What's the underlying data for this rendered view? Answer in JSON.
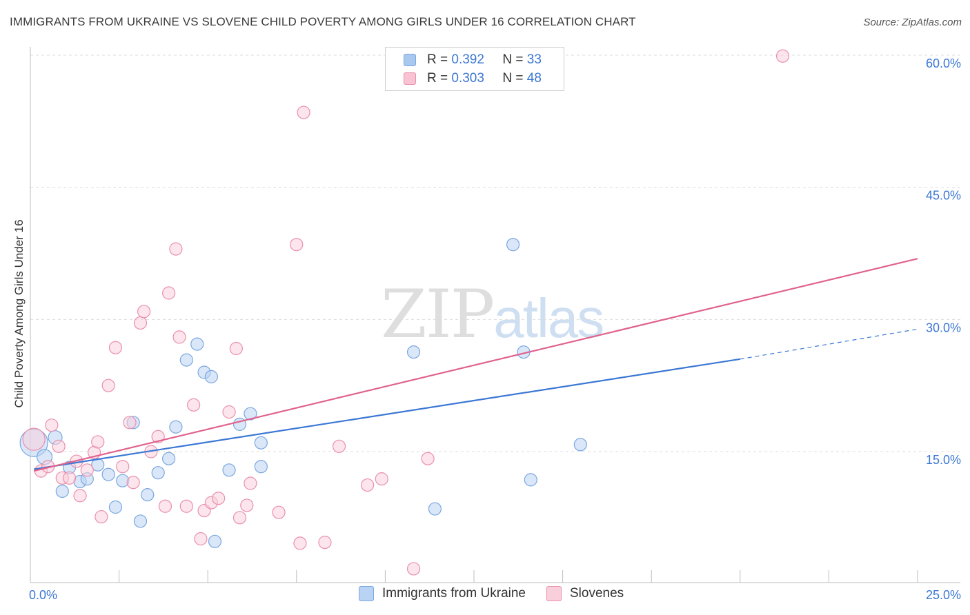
{
  "title": "IMMIGRANTS FROM UKRAINE VS SLOVENE CHILD POVERTY AMONG GIRLS UNDER 16 CORRELATION CHART",
  "source": "Source: ZipAtlas.com",
  "watermark": {
    "zip": "ZIP",
    "atlas": "atlas"
  },
  "legend": {
    "rows": [
      {
        "r_label": "R = ",
        "r_value": "0.392",
        "n_label": "N = ",
        "n_value": "33",
        "color": "#a9c8f0",
        "border": "#7aa6df"
      },
      {
        "r_label": "R = ",
        "r_value": "0.303",
        "n_label": "N = ",
        "n_value": "48",
        "color": "#f8c3d3",
        "border": "#ea8fac"
      }
    ]
  },
  "bottom_legend": [
    {
      "label": "Immigrants from Ukraine",
      "color": "#b9d3f4",
      "border": "#7aa6df"
    },
    {
      "label": "Slovenes",
      "color": "#f9cfdc",
      "border": "#ea8fac"
    }
  ],
  "chart_data": {
    "type": "scatter",
    "title": "IMMIGRANTS FROM UKRAINE VS SLOVENE CHILD POVERTY AMONG GIRLS UNDER 16 CORRELATION CHART",
    "xlabel": "",
    "ylabel": "Child Poverty Among Girls Under 16",
    "xlim": [
      0,
      25
    ],
    "ylim": [
      0,
      60
    ],
    "x_tick_labels": {
      "min": "0.0%",
      "max": "25.0%"
    },
    "y_ticks": [
      15,
      30,
      45,
      60
    ],
    "y_tick_labels": [
      "15.0%",
      "30.0%",
      "45.0%",
      "60.0%"
    ],
    "grid": "horizontal dashed",
    "series": [
      {
        "name": "Immigrants from Ukraine",
        "color": "#3b77d4",
        "fill": "#b9d3f4",
        "stroke": "#7aa6df",
        "points": [
          [
            0.1,
            16.0,
            20
          ],
          [
            0.4,
            14.4,
            11
          ],
          [
            0.7,
            16.6,
            10
          ],
          [
            0.9,
            10.5,
            9
          ],
          [
            1.1,
            13.2,
            9
          ],
          [
            1.4,
            11.6,
            9
          ],
          [
            1.6,
            11.9,
            9
          ],
          [
            1.9,
            13.5,
            9
          ],
          [
            2.2,
            12.4,
            9
          ],
          [
            2.4,
            8.7,
            9
          ],
          [
            2.6,
            11.7,
            9
          ],
          [
            2.9,
            18.3,
            9
          ],
          [
            3.1,
            7.1,
            9
          ],
          [
            3.3,
            10.1,
            9
          ],
          [
            3.6,
            12.6,
            9
          ],
          [
            3.9,
            14.2,
            9
          ],
          [
            4.1,
            17.8,
            9
          ],
          [
            4.4,
            25.4,
            9
          ],
          [
            4.7,
            27.2,
            9
          ],
          [
            4.9,
            24.0,
            9
          ],
          [
            5.1,
            23.5,
            9
          ],
          [
            5.2,
            4.8,
            9
          ],
          [
            5.6,
            12.9,
            9
          ],
          [
            5.9,
            18.1,
            9
          ],
          [
            6.2,
            19.3,
            9
          ],
          [
            6.5,
            16.0,
            9
          ],
          [
            6.5,
            13.3,
            9
          ],
          [
            10.8,
            26.3,
            9
          ],
          [
            11.4,
            8.5,
            9
          ],
          [
            13.6,
            38.5,
            9
          ],
          [
            13.9,
            26.3,
            9
          ],
          [
            14.1,
            11.8,
            9
          ],
          [
            15.5,
            15.8,
            9
          ]
        ],
        "trend": {
          "x0": 0.1,
          "y0": 13.0,
          "x1": 20.0,
          "y1": 25.5,
          "dash_to_x": 25.0,
          "dash_to_y": 28.9
        }
      },
      {
        "name": "Slovenes",
        "color": "#e0628d",
        "fill": "#f9cfdc",
        "stroke": "#ea8fac",
        "points": [
          [
            0.1,
            16.4,
            16
          ],
          [
            0.3,
            12.8,
            9
          ],
          [
            0.5,
            13.3,
            9
          ],
          [
            0.6,
            18.0,
            9
          ],
          [
            0.8,
            15.6,
            9
          ],
          [
            0.9,
            12.0,
            9
          ],
          [
            1.1,
            12.0,
            9
          ],
          [
            1.3,
            13.9,
            9
          ],
          [
            1.4,
            10.0,
            9
          ],
          [
            1.6,
            12.9,
            9
          ],
          [
            1.8,
            14.9,
            9
          ],
          [
            1.9,
            16.1,
            9
          ],
          [
            2.0,
            7.6,
            9
          ],
          [
            2.2,
            22.5,
            9
          ],
          [
            2.4,
            26.8,
            9
          ],
          [
            2.6,
            13.3,
            9
          ],
          [
            2.8,
            18.3,
            9
          ],
          [
            2.9,
            11.5,
            9
          ],
          [
            3.1,
            29.6,
            9
          ],
          [
            3.2,
            30.9,
            9
          ],
          [
            3.4,
            15.0,
            9
          ],
          [
            3.6,
            16.7,
            9
          ],
          [
            3.8,
            8.8,
            9
          ],
          [
            3.9,
            33.0,
            9
          ],
          [
            4.1,
            38.0,
            9
          ],
          [
            4.2,
            28.0,
            9
          ],
          [
            4.4,
            8.8,
            9
          ],
          [
            4.6,
            20.3,
            9
          ],
          [
            4.8,
            5.1,
            9
          ],
          [
            4.9,
            8.3,
            9
          ],
          [
            5.1,
            9.2,
            9
          ],
          [
            5.3,
            9.7,
            9
          ],
          [
            5.6,
            19.5,
            9
          ],
          [
            5.8,
            26.7,
            9
          ],
          [
            5.9,
            7.5,
            9
          ],
          [
            6.1,
            8.9,
            9
          ],
          [
            6.2,
            11.4,
            9
          ],
          [
            7.0,
            8.1,
            9
          ],
          [
            7.5,
            38.5,
            9
          ],
          [
            7.6,
            4.6,
            9
          ],
          [
            7.7,
            53.5,
            9
          ],
          [
            8.3,
            4.7,
            9
          ],
          [
            8.7,
            15.6,
            9
          ],
          [
            9.5,
            11.2,
            9
          ],
          [
            9.9,
            11.9,
            9
          ],
          [
            10.8,
            1.7,
            9
          ],
          [
            11.2,
            14.2,
            9
          ],
          [
            21.2,
            59.9,
            9
          ]
        ],
        "trend": {
          "x0": 0.1,
          "y0": 12.8,
          "x1": 25.0,
          "y1": 36.9
        }
      }
    ]
  }
}
